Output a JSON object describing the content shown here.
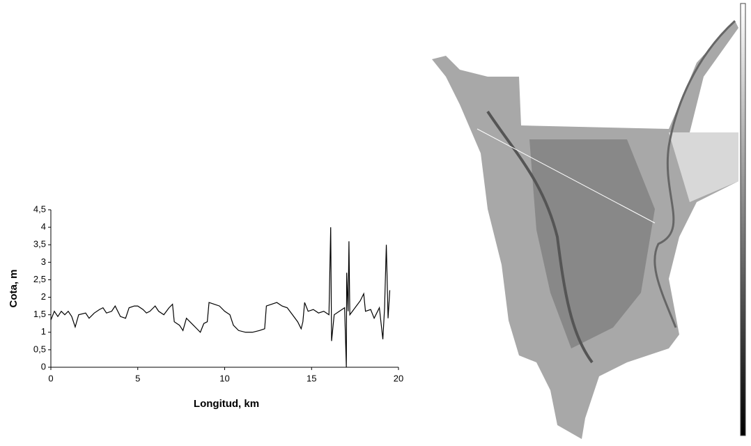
{
  "chart_data": {
    "type": "line",
    "x_label": "Longitud, km",
    "y_label": "Cota, m",
    "x": [
      0,
      0.2,
      0.4,
      0.6,
      0.8,
      1.0,
      1.2,
      1.4,
      1.6,
      2.0,
      2.2,
      2.5,
      2.8,
      3.0,
      3.2,
      3.5,
      3.7,
      4.0,
      4.3,
      4.5,
      4.8,
      5.0,
      5.3,
      5.5,
      5.7,
      5.9,
      6.0,
      6.2,
      6.5,
      6.8,
      7.0,
      7.1,
      7.4,
      7.6,
      7.8,
      8.0,
      8.2,
      8.4,
      8.6,
      8.8,
      9.0,
      9.1,
      9.4,
      9.7,
      10.0,
      10.3,
      10.5,
      10.8,
      11.2,
      11.6,
      12.0,
      12.3,
      12.4,
      12.7,
      13.0,
      13.3,
      13.6,
      13.9,
      14.2,
      14.4,
      14.5,
      14.6,
      14.8,
      15.1,
      15.4,
      15.7,
      16.0,
      16.1,
      16.15,
      16.3,
      16.6,
      16.9,
      17.0,
      17.02,
      17.1,
      17.15,
      17.2,
      17.5,
      17.8,
      18.0,
      18.1,
      18.4,
      18.6,
      18.9,
      19.1,
      19.2,
      19.3,
      19.4,
      19.5
    ],
    "values": [
      1.35,
      1.6,
      1.45,
      1.6,
      1.5,
      1.6,
      1.45,
      1.15,
      1.5,
      1.55,
      1.4,
      1.55,
      1.65,
      1.7,
      1.55,
      1.6,
      1.75,
      1.45,
      1.4,
      1.7,
      1.75,
      1.75,
      1.65,
      1.55,
      1.6,
      1.7,
      1.75,
      1.6,
      1.5,
      1.7,
      1.8,
      1.3,
      1.2,
      1.05,
      1.4,
      1.3,
      1.2,
      1.1,
      1.0,
      1.25,
      1.3,
      1.85,
      1.8,
      1.75,
      1.6,
      1.5,
      1.2,
      1.05,
      1.0,
      1.0,
      1.05,
      1.1,
      1.75,
      1.8,
      1.85,
      1.75,
      1.7,
      1.5,
      1.3,
      1.1,
      1.3,
      1.85,
      1.6,
      1.65,
      1.55,
      1.6,
      1.5,
      4.0,
      0.75,
      1.5,
      1.6,
      1.7,
      0,
      2.7,
      1.6,
      3.6,
      1.5,
      1.7,
      1.9,
      2.1,
      1.6,
      1.65,
      1.4,
      1.7,
      0.8,
      1.7,
      3.5,
      1.4,
      2.2
    ],
    "color": "#000000",
    "xlim": [
      0,
      20
    ],
    "xticks": [
      0,
      5,
      10,
      15,
      20
    ],
    "ylim": [
      0,
      4.5
    ],
    "yticks": [
      0,
      {
        "value": 0.5,
        "label": "0,5"
      },
      1,
      {
        "value": 1.5,
        "label": "1,5"
      },
      2,
      {
        "value": 2.5,
        "label": "2,5"
      },
      3,
      {
        "value": 3.5,
        "label": "3,5"
      },
      4,
      {
        "value": 4.5,
        "label": "4,5"
      }
    ],
    "grid": false
  }
}
